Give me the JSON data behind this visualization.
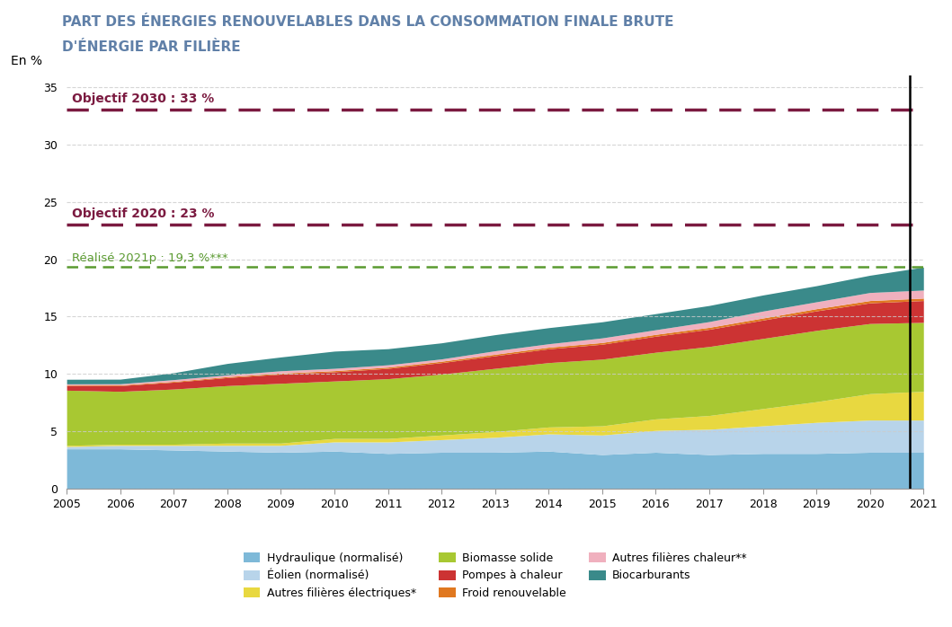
{
  "title_line1": "PART DES ÉNERGIES RENOUVELABLES DANS LA CONSOMMATION FINALE BRUTE",
  "title_line2": "D'ÉNERGIE PAR FILIÈRE",
  "ylabel": "En %",
  "years": [
    2005,
    2006,
    2007,
    2008,
    2009,
    2010,
    2011,
    2012,
    2013,
    2014,
    2015,
    2016,
    2017,
    2018,
    2019,
    2020,
    2021
  ],
  "series": {
    "Hydraulique (normalisé)": [
      3.5,
      3.5,
      3.4,
      3.3,
      3.2,
      3.3,
      3.1,
      3.2,
      3.2,
      3.3,
      3.0,
      3.2,
      3.0,
      3.1,
      3.1,
      3.2,
      3.2
    ],
    "Éolien (normalisé)": [
      0.2,
      0.3,
      0.4,
      0.5,
      0.6,
      0.8,
      1.0,
      1.1,
      1.3,
      1.5,
      1.7,
      1.9,
      2.2,
      2.4,
      2.7,
      2.8,
      2.8
    ],
    "Autres filières électriques*": [
      0.1,
      0.1,
      0.1,
      0.2,
      0.2,
      0.3,
      0.3,
      0.4,
      0.5,
      0.6,
      0.8,
      1.0,
      1.2,
      1.5,
      1.8,
      2.3,
      2.5
    ],
    "Biomasse solide": [
      4.8,
      4.6,
      4.8,
      5.0,
      5.2,
      5.0,
      5.2,
      5.3,
      5.5,
      5.6,
      5.8,
      5.8,
      6.0,
      6.1,
      6.2,
      6.1,
      6.0
    ],
    "Pompes à chaleur": [
      0.4,
      0.5,
      0.6,
      0.7,
      0.8,
      0.8,
      0.9,
      1.0,
      1.1,
      1.2,
      1.3,
      1.4,
      1.5,
      1.6,
      1.7,
      1.8,
      1.9
    ],
    "Froid renouvelable": [
      0.05,
      0.06,
      0.07,
      0.08,
      0.09,
      0.1,
      0.11,
      0.12,
      0.13,
      0.14,
      0.15,
      0.16,
      0.17,
      0.18,
      0.19,
      0.2,
      0.21
    ],
    "Autres filières chaleur**": [
      0.1,
      0.1,
      0.15,
      0.15,
      0.2,
      0.2,
      0.2,
      0.2,
      0.3,
      0.3,
      0.4,
      0.4,
      0.5,
      0.6,
      0.6,
      0.7,
      0.7
    ],
    "Biocarburants": [
      0.4,
      0.4,
      0.6,
      1.0,
      1.2,
      1.5,
      1.4,
      1.4,
      1.4,
      1.4,
      1.4,
      1.4,
      1.4,
      1.4,
      1.4,
      1.5,
      2.0
    ]
  },
  "colors": {
    "Hydraulique (normalisé)": "#7eb9d8",
    "Éolien (normalisé)": "#b8d4ea",
    "Autres filières électriques*": "#e8d840",
    "Biomasse solide": "#a8c832",
    "Pompes à chaleur": "#cc3333",
    "Froid renouvelable": "#e07820",
    "Autres filières chaleur**": "#f0b0be",
    "Biocarburants": "#3a8a8a"
  },
  "stack_order": [
    "Hydraulique (normalisé)",
    "Éolien (normalisé)",
    "Autres filières électriques*",
    "Biomasse solide",
    "Pompes à chaleur",
    "Froid renouvelable",
    "Autres filières chaleur**",
    "Biocarburants"
  ],
  "legend_order": [
    [
      "Hydraulique (normalisé)",
      "Éolien (normalisé)",
      "Autres filières électriques*"
    ],
    [
      "Biomasse solide",
      "Pompes à chaleur",
      "Froid renouvelable"
    ],
    [
      "Autres filières chaleur**",
      "Biocarburants",
      ""
    ]
  ],
  "objectif_2030": 33.0,
  "objectif_2020": 23.0,
  "realise_2021": 19.3,
  "objectif_2030_label": "Objectif 2030 : 33 %",
  "objectif_2020_label": "Objectif 2020 : 23 %",
  "realise_2021_label": "Réalisé 2021p : 19,3 %***",
  "objectif_color": "#7b1a40",
  "realise_color": "#5a9a30",
  "vertical_line_x": 2020.75,
  "ylim": [
    0,
    36
  ],
  "yticks": [
    0,
    5,
    10,
    15,
    20,
    25,
    30,
    35
  ],
  "title_color": "#6080a8",
  "background_color": "#ffffff",
  "grid_color": "#cccccc",
  "axis_color": "#999999"
}
